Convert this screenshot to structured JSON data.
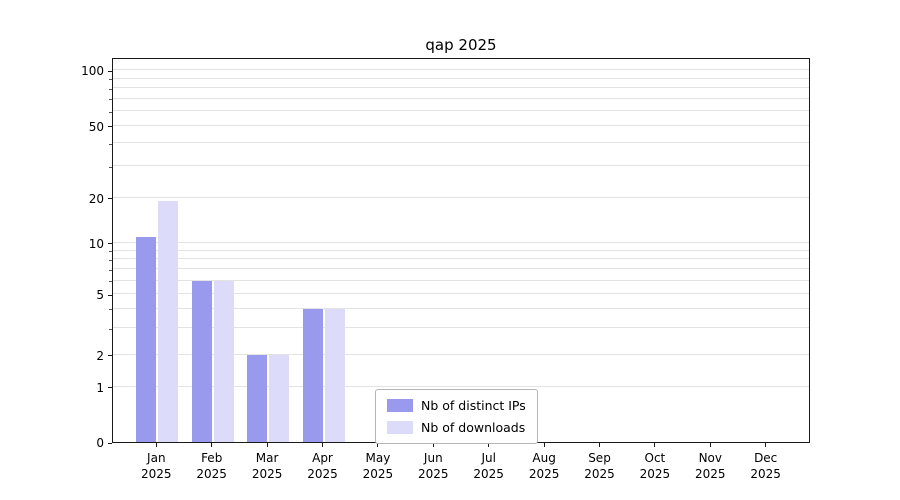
{
  "chart_data": {
    "type": "bar",
    "title": "qap 2025",
    "categories": [
      "Jan",
      "Feb",
      "Mar",
      "Apr",
      "May",
      "Jun",
      "Jul",
      "Aug",
      "Sep",
      "Oct",
      "Nov",
      "Dec"
    ],
    "x_year": "2025",
    "series": [
      {
        "name": "Nb of distinct IPs",
        "color": "#9999ee",
        "values": [
          11,
          6,
          2,
          4,
          0,
          0,
          0,
          0,
          0,
          0,
          0,
          0
        ]
      },
      {
        "name": "Nb of downloads",
        "color": "#dcdcfa",
        "values": [
          19,
          6,
          2,
          4,
          0,
          0,
          0,
          0,
          0,
          0,
          0,
          0
        ]
      }
    ],
    "y_ticks": [
      0,
      1,
      2,
      5,
      10,
      20,
      50,
      100
    ],
    "ylim": [
      0,
      110
    ],
    "scale": "log-like",
    "grid": "horizontal",
    "legend_position": "lower center",
    "axis_color": "#000000",
    "grid_color": "#e3e3e3"
  }
}
